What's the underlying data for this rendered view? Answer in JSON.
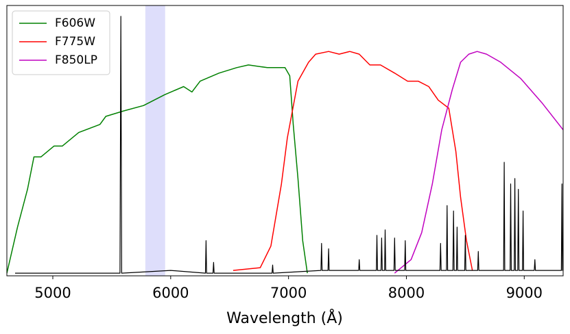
{
  "chart_data": {
    "type": "line",
    "xlabel": "Wavelength (Å)",
    "xlim": [
      4610,
      9330
    ],
    "xticks": [
      5000,
      6000,
      7000,
      8000,
      9000
    ],
    "ylim": [
      0,
      1
    ],
    "legend": "upper left",
    "shaded_span": {
      "x": [
        5785,
        5953
      ],
      "color": "#c8c8f8"
    },
    "series": [
      {
        "name": "F606W",
        "color": "#008000",
        "x": [
          4610,
          4700,
          4785,
          4840,
          4900,
          5010,
          5080,
          5220,
          5400,
          5450,
          5600,
          5770,
          5950,
          6110,
          6180,
          6250,
          6410,
          6560,
          6660,
          6820,
          6970,
          7010,
          7040,
          7080,
          7120,
          7160
        ],
        "values": [
          0.01,
          0.18,
          0.32,
          0.44,
          0.44,
          0.48,
          0.48,
          0.53,
          0.56,
          0.59,
          0.61,
          0.63,
          0.67,
          0.7,
          0.68,
          0.72,
          0.75,
          0.77,
          0.78,
          0.77,
          0.77,
          0.74,
          0.56,
          0.36,
          0.13,
          0.01
        ]
      },
      {
        "name": "F775W",
        "color": "#ff0000",
        "x": [
          6530,
          6760,
          6850,
          6940,
          6990,
          7080,
          7170,
          7230,
          7340,
          7430,
          7520,
          7600,
          7690,
          7780,
          7900,
          8010,
          8100,
          8190,
          8270,
          8360,
          8420,
          8460,
          8510,
          8560
        ],
        "values": [
          0.02,
          0.03,
          0.11,
          0.34,
          0.51,
          0.72,
          0.79,
          0.82,
          0.83,
          0.82,
          0.83,
          0.82,
          0.78,
          0.78,
          0.75,
          0.72,
          0.72,
          0.7,
          0.65,
          0.62,
          0.46,
          0.29,
          0.13,
          0.02
        ]
      },
      {
        "name": "F850LP",
        "color": "#c000c0",
        "x": [
          7900,
          8040,
          8130,
          8220,
          8300,
          8390,
          8460,
          8530,
          8600,
          8680,
          8800,
          8970,
          9150,
          9330
        ],
        "values": [
          0.01,
          0.06,
          0.16,
          0.34,
          0.54,
          0.69,
          0.79,
          0.82,
          0.83,
          0.82,
          0.79,
          0.73,
          0.64,
          0.54
        ]
      },
      {
        "color": "#000000",
        "x": [
          4680,
          5570,
          5577,
          5584,
          6000,
          6295,
          6300,
          6305,
          6359,
          6364,
          6369,
          6860,
          6865,
          6870,
          7275,
          7280,
          7285,
          7335,
          7340,
          7345,
          7595,
          7600,
          7605,
          7745,
          7750,
          7755,
          7785,
          7790,
          7795,
          7815,
          7820,
          7825,
          7895,
          7900,
          7905,
          7985,
          7990,
          7995,
          8285,
          8290,
          8295,
          8340,
          8345,
          8350,
          8395,
          8400,
          8405,
          8425,
          8430,
          8435,
          8495,
          8500,
          8505,
          8605,
          8610,
          8615,
          8825,
          8830,
          8835,
          8880,
          8885,
          8890,
          8915,
          8920,
          8925,
          8945,
          8950,
          8955,
          8985,
          8990,
          8995,
          9085,
          9090,
          9095,
          9315,
          9320,
          9325,
          9335,
          9340,
          9345
        ],
        "values": [
          0.01,
          0.01,
          0.96,
          0.01,
          0.02,
          0.01,
          0.13,
          0.01,
          0.01,
          0.05,
          0.01,
          0.01,
          0.04,
          0.01,
          0.02,
          0.12,
          0.02,
          0.02,
          0.1,
          0.02,
          0.02,
          0.06,
          0.02,
          0.02,
          0.15,
          0.02,
          0.02,
          0.14,
          0.02,
          0.02,
          0.17,
          0.02,
          0.02,
          0.14,
          0.02,
          0.02,
          0.13,
          0.02,
          0.02,
          0.12,
          0.02,
          0.02,
          0.26,
          0.02,
          0.02,
          0.24,
          0.02,
          0.02,
          0.18,
          0.02,
          0.02,
          0.15,
          0.02,
          0.02,
          0.09,
          0.02,
          0.02,
          0.42,
          0.02,
          0.02,
          0.34,
          0.02,
          0.02,
          0.36,
          0.02,
          0.02,
          0.32,
          0.02,
          0.02,
          0.24,
          0.02,
          0.02,
          0.06,
          0.02,
          0.02,
          0.34,
          0.02,
          0.02,
          0.32,
          0.02
        ]
      }
    ]
  }
}
